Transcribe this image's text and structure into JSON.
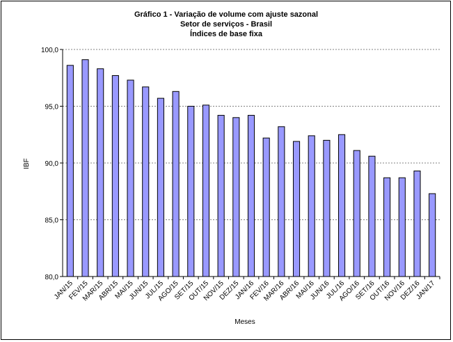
{
  "chart_data": {
    "type": "bar",
    "title": "Gráfico 1 - Variação de volume com ajuste sazonal",
    "subtitle": "Setor de serviços - Brasil",
    "subtitle2": "Índices de base fixa",
    "xlabel": "Meses",
    "ylabel": "IBF",
    "ylim": [
      80,
      100
    ],
    "yticks": [
      "80,0",
      "85,0",
      "90,0",
      "95,0",
      "100,0"
    ],
    "grid": true,
    "bar_color": "#9999FF",
    "categories": [
      "JAN/15",
      "FEV/15",
      "MAR/15",
      "ABR/15",
      "MAI/15",
      "JUN/15",
      "JUL/15",
      "AGO/15",
      "SET/15",
      "OUT/15",
      "NOV/15",
      "DEZ/15",
      "JAN/16",
      "FEV/16",
      "MAR/16",
      "ABR/16",
      "MAI/16",
      "JUN/16",
      "JUL/16",
      "AGO/16",
      "SET/16",
      "OUT/16",
      "NOV/16",
      "DEZ/16",
      "JAN/17"
    ],
    "values": [
      98.6,
      99.1,
      98.3,
      97.7,
      97.3,
      96.7,
      95.7,
      96.3,
      95.0,
      95.1,
      94.2,
      94.0,
      94.2,
      92.2,
      93.2,
      91.9,
      92.4,
      92.0,
      92.5,
      91.1,
      90.6,
      88.7,
      88.7,
      89.3,
      87.3
    ]
  }
}
